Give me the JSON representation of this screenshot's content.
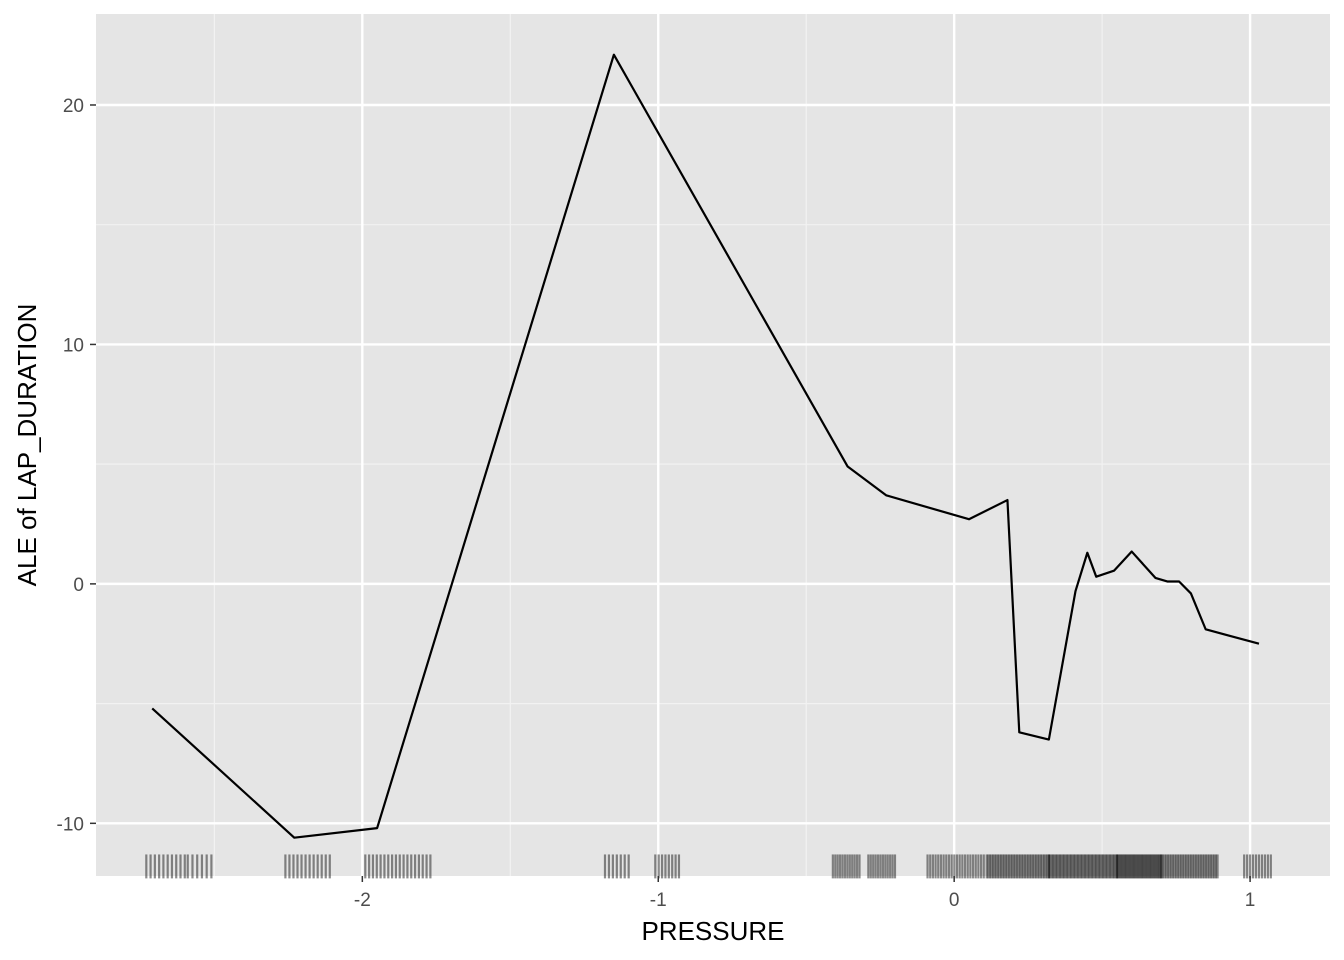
{
  "chart_data": {
    "type": "line",
    "xlabel": "PRESSURE",
    "ylabel": "ALE of LAP_DURATION",
    "xlim": [
      -2.9,
      1.27
    ],
    "ylim": [
      -12.2,
      23.8
    ],
    "x_ticks": [
      -2,
      -1,
      0,
      1
    ],
    "x_tick_labels": [
      "-2",
      "-1",
      "0",
      "1"
    ],
    "x_minor_ticks": [
      -2.5,
      -1.5,
      -0.5,
      0.5
    ],
    "y_ticks": [
      -10,
      0,
      10,
      20
    ],
    "y_tick_labels": [
      "-10",
      "0",
      "10",
      "20"
    ],
    "y_minor_ticks": [
      -5,
      5,
      15
    ],
    "grid": true,
    "background": "#e5e5e5",
    "line_color": "#000000",
    "series": [
      {
        "x": [
          -2.71,
          -2.23,
          -1.95,
          -1.15,
          -0.36,
          -0.23,
          0.05,
          0.18,
          0.22,
          0.32,
          0.41,
          0.45,
          0.48,
          0.54,
          0.6,
          0.68,
          0.72,
          0.76,
          0.8,
          0.85,
          1.03
        ],
        "y": [
          -5.2,
          -10.6,
          -10.2,
          22.1,
          4.9,
          3.7,
          2.7,
          3.5,
          -6.2,
          -6.5,
          -0.3,
          1.3,
          0.3,
          0.55,
          1.35,
          0.25,
          0.1,
          0.1,
          -0.4,
          -1.9,
          -2.5
        ]
      }
    ],
    "rug": {
      "y_range": [
        -11.3,
        -12.3
      ],
      "clusters": [
        {
          "start": -2.73,
          "end": -2.6,
          "count": 10
        },
        {
          "start": -2.59,
          "end": -2.51,
          "count": 6
        },
        {
          "start": -2.26,
          "end": -2.11,
          "count": 12
        },
        {
          "start": -1.99,
          "end": -1.77,
          "count": 18
        },
        {
          "start": -1.18,
          "end": -1.1,
          "count": 7
        },
        {
          "start": -1.01,
          "end": -0.93,
          "count": 8
        },
        {
          "start": -0.41,
          "end": -0.32,
          "count": 12
        },
        {
          "start": -0.29,
          "end": -0.2,
          "count": 12
        },
        {
          "start": -0.09,
          "end": 0.1,
          "count": 22
        },
        {
          "start": 0.11,
          "end": 0.32,
          "count": 40
        },
        {
          "start": 0.32,
          "end": 0.55,
          "count": 50
        },
        {
          "start": 0.55,
          "end": 0.7,
          "count": 40
        },
        {
          "start": 0.7,
          "end": 0.89,
          "count": 35
        },
        {
          "start": 0.98,
          "end": 1.07,
          "count": 10
        }
      ]
    }
  }
}
